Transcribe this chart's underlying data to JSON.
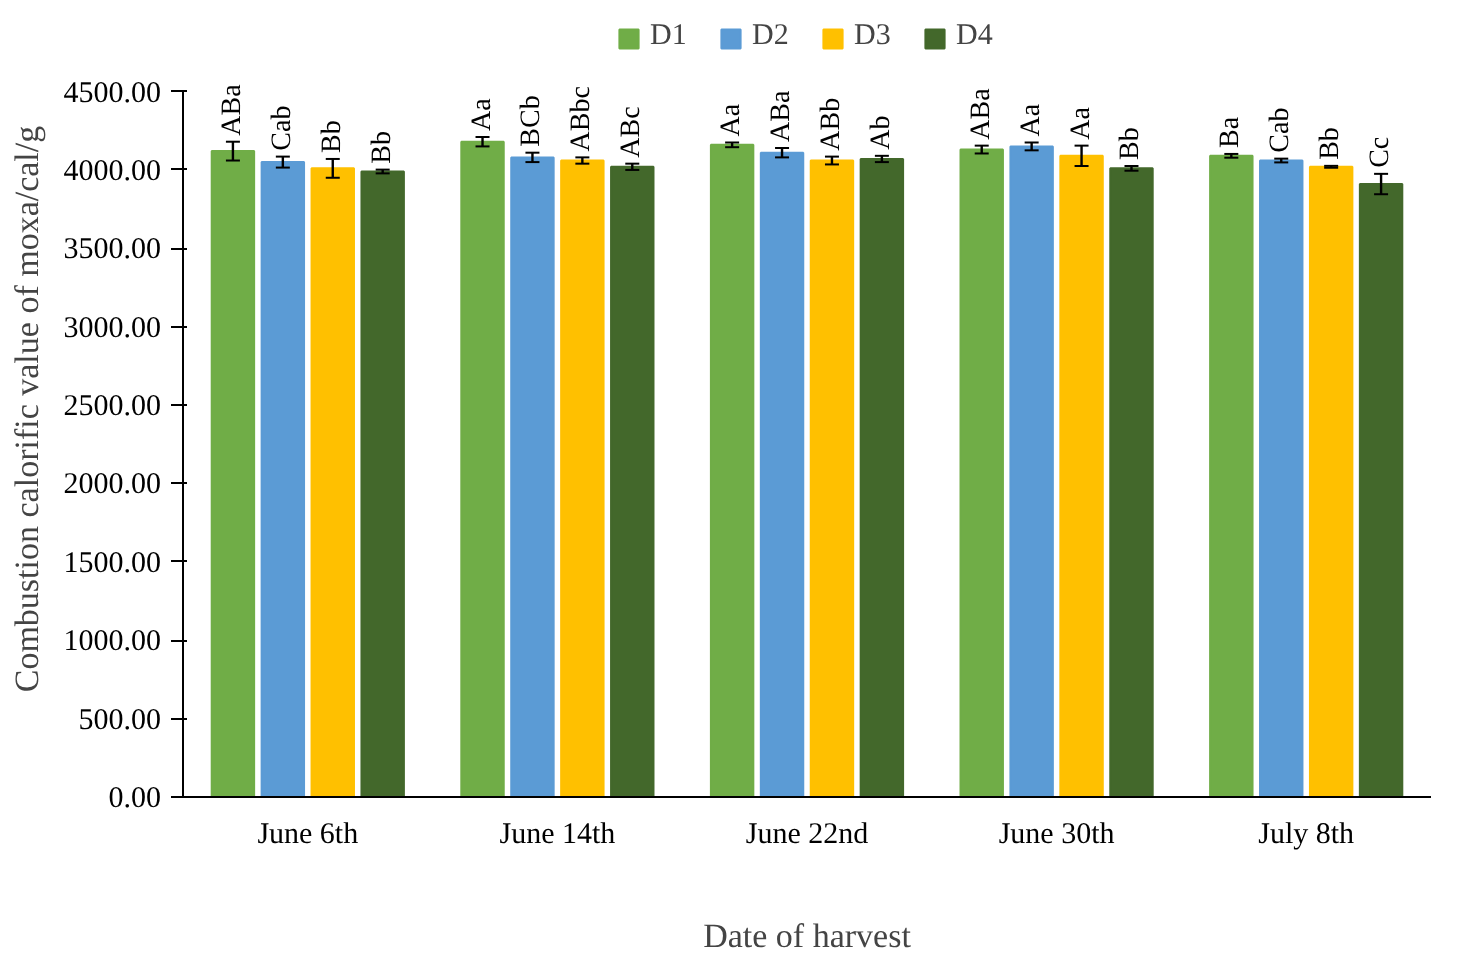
{
  "chart_data": {
    "type": "bar",
    "xlabel": "Date of harvest",
    "ylabel": "Combustion calorific value of moxa/cal/g",
    "categories": [
      "June 6th",
      "June 14th",
      "June 22nd",
      "June 30th",
      "July 8th"
    ],
    "series": [
      {
        "name": "D1",
        "color": "#70ad47",
        "values": [
          4120,
          4180,
          4160,
          4130,
          4090
        ],
        "errors": [
          60,
          30,
          15,
          25,
          12
        ],
        "value_labels": [
          "ABa",
          "Aa",
          "Aa",
          "ABa",
          "Ba"
        ]
      },
      {
        "name": "D2",
        "color": "#5b9bd5",
        "values": [
          4050,
          4080,
          4110,
          4150,
          4060
        ],
        "errors": [
          35,
          30,
          30,
          25,
          12
        ],
        "value_labels": [
          "Cab",
          "BCb",
          "ABa",
          "Aa",
          "Cab"
        ]
      },
      {
        "name": "D3",
        "color": "#ffc000",
        "values": [
          4010,
          4060,
          4060,
          4090,
          4020
        ],
        "errors": [
          60,
          20,
          25,
          65,
          6
        ],
        "value_labels": [
          "Bb",
          "ABbc",
          "ABb",
          "Aa",
          "Bb"
        ]
      },
      {
        "name": "D4",
        "color": "#43682b",
        "values": [
          3990,
          4020,
          4070,
          4010,
          3910
        ],
        "errors": [
          12,
          20,
          20,
          15,
          65
        ],
        "value_labels": [
          "Bb",
          "ABc",
          "Ab",
          "Bb",
          "Cc"
        ]
      }
    ],
    "ylim": [
      0,
      4500
    ],
    "yticks": [
      {
        "value": 0,
        "label": "0.00"
      },
      {
        "value": 500,
        "label": "500.00"
      },
      {
        "value": 1000,
        "label": "1000.00"
      },
      {
        "value": 1500,
        "label": "1500.00"
      },
      {
        "value": 2000,
        "label": "2000.00"
      },
      {
        "value": 2500,
        "label": "2500.00"
      },
      {
        "value": 3000,
        "label": "3000.00"
      },
      {
        "value": 3500,
        "label": "3500.00"
      },
      {
        "value": 4000,
        "label": "4000.00"
      },
      {
        "value": 4500,
        "label": "4500.00"
      }
    ],
    "grid": false,
    "legend": "top"
  }
}
